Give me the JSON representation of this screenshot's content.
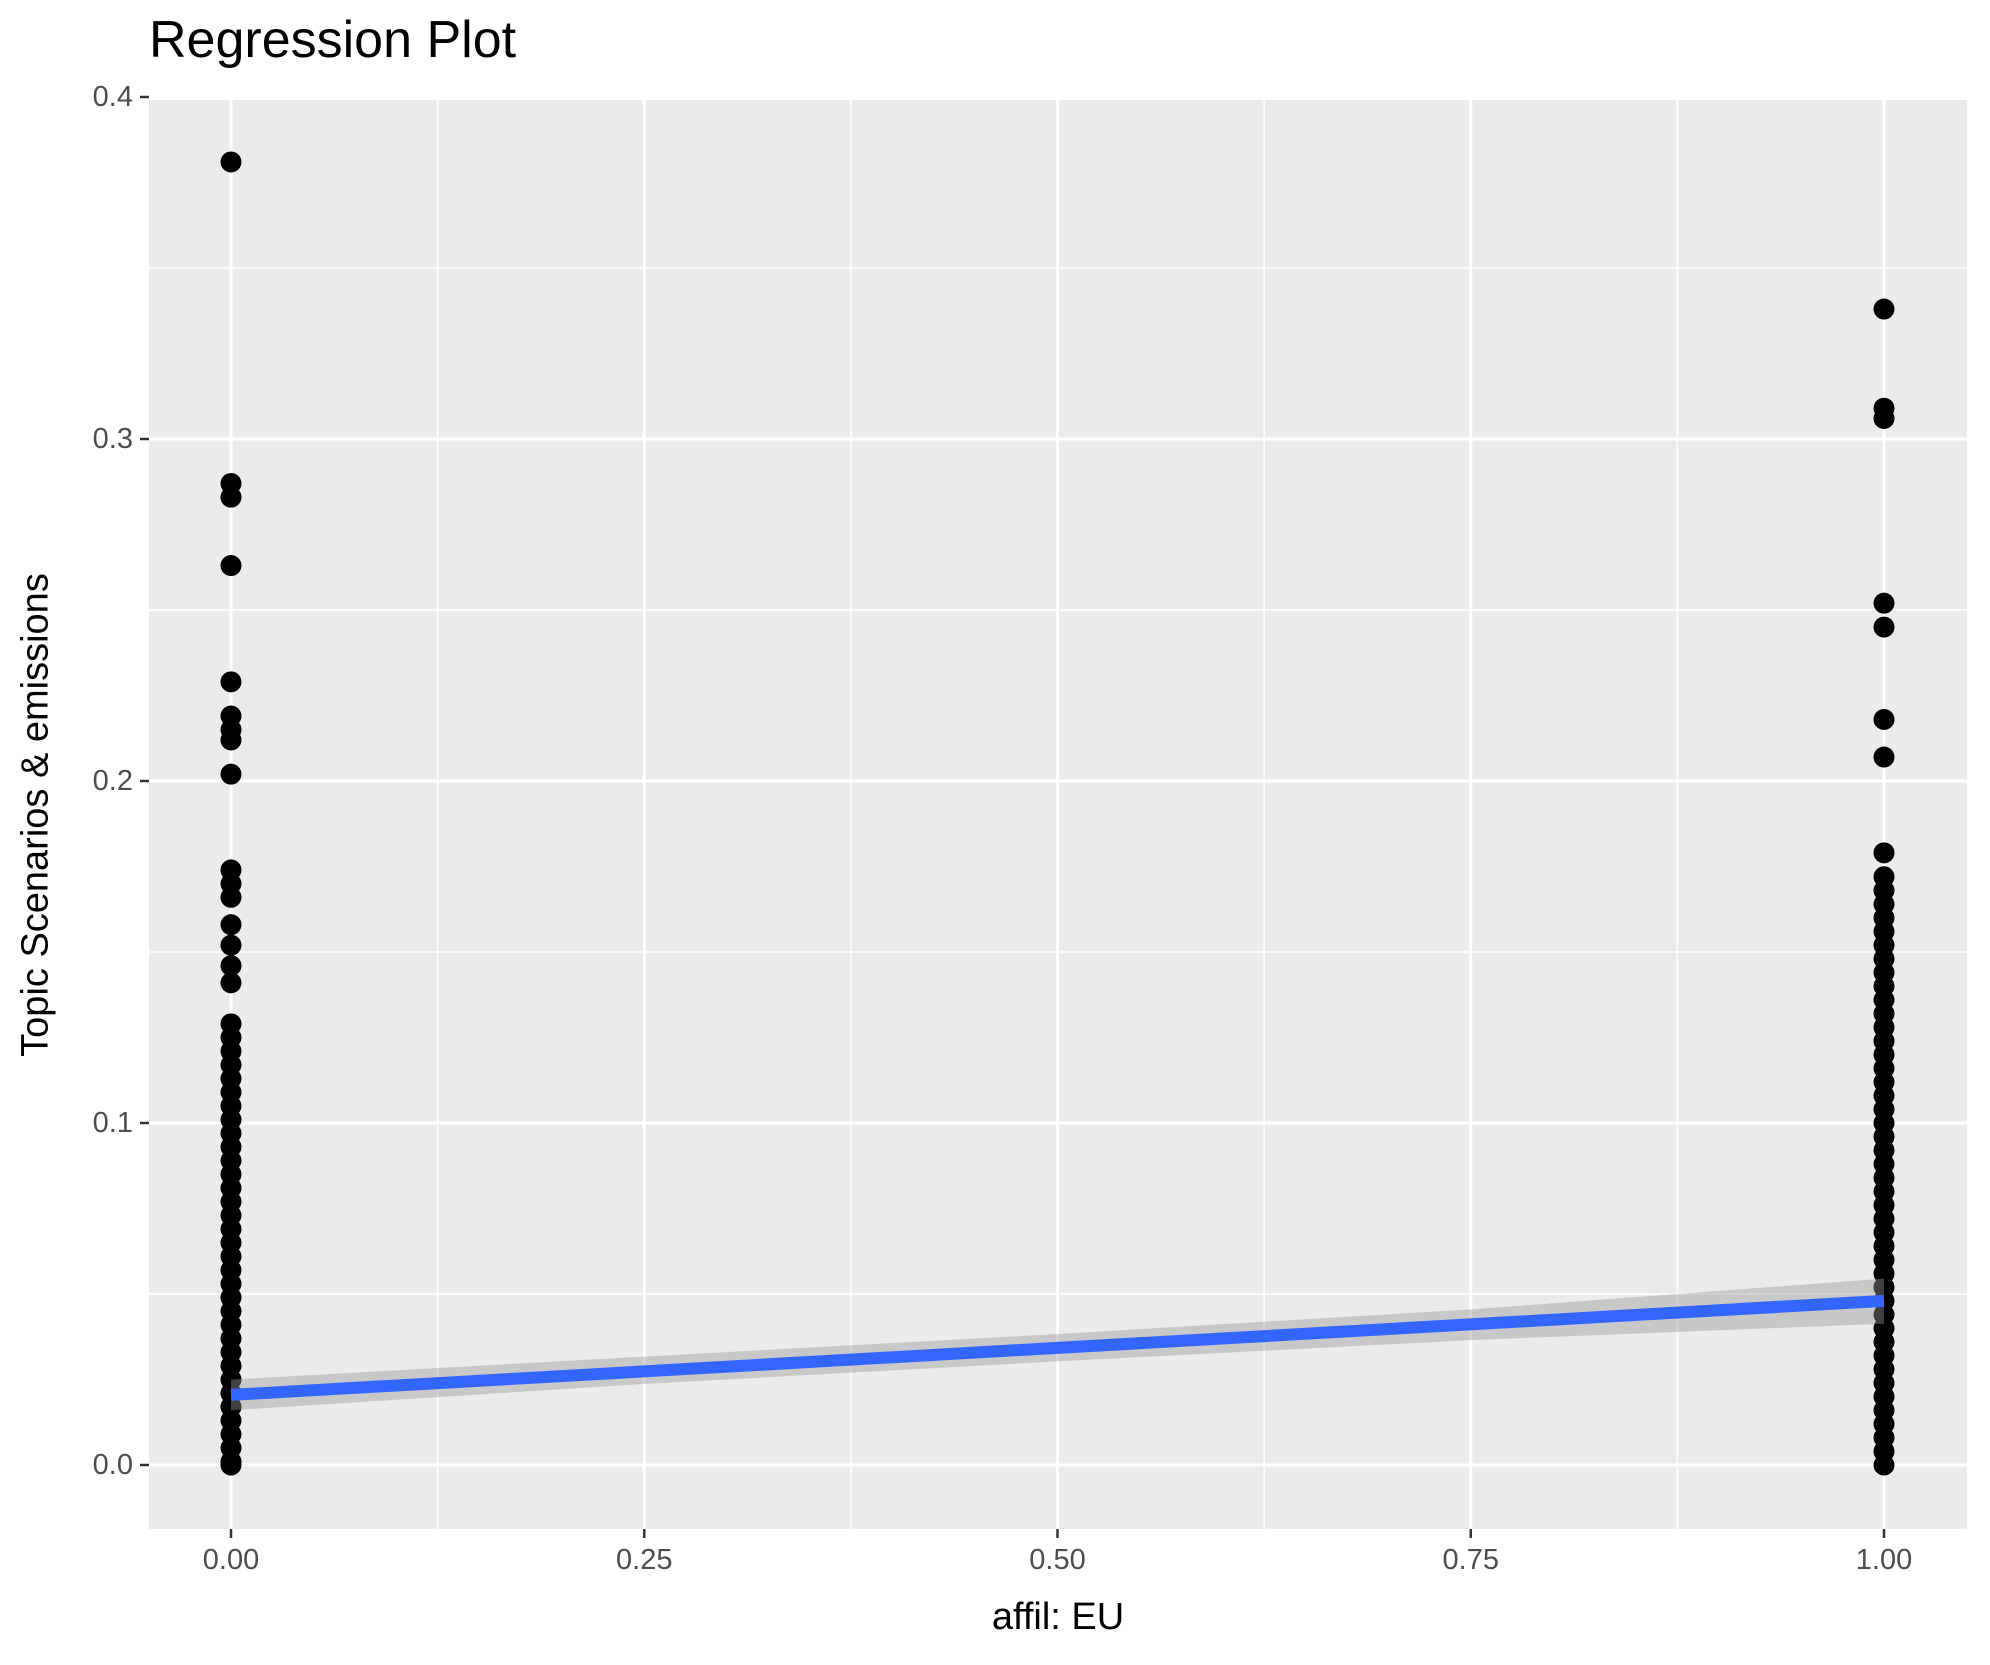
{
  "title": "Regression Plot",
  "axes": {
    "x": {
      "title": "affil: EU",
      "tick_labels": [
        "0.00",
        "0.25",
        "0.50",
        "0.75",
        "1.00"
      ],
      "tick_values": [
        0,
        0.25,
        0.5,
        0.75,
        1
      ],
      "minor_values": [
        0.125,
        0.375,
        0.625,
        0.875
      ],
      "range": [
        -0.05,
        1.05
      ]
    },
    "y": {
      "title": "Topic Scenarios & emissions",
      "tick_labels": [
        "0.0",
        "0.1",
        "0.2",
        "0.3",
        "0.4"
      ],
      "tick_values": [
        0,
        0.1,
        0.2,
        0.3,
        0.4
      ],
      "minor_values": [
        0.05,
        0.15,
        0.25,
        0.35
      ],
      "range": [
        -0.019,
        0.399
      ]
    }
  },
  "colors": {
    "panel_background": "#EBEBEB",
    "gridline": "#FFFFFF",
    "tick_mark": "#333333",
    "tick_label": "#4D4D4D",
    "point": "#000000",
    "regression_line": "#3366FF",
    "confidence_band": "rgba(153,153,153,0.42)"
  },
  "chart_data": {
    "type": "scatter",
    "title": "Regression Plot",
    "xlabel": "affil: EU",
    "ylabel": "Topic Scenarios & emissions",
    "xlim": [
      -0.05,
      1.05
    ],
    "ylim": [
      -0.019,
      0.399
    ],
    "grid": true,
    "legend_position": "none",
    "series": [
      {
        "name": "affil: EU = 0",
        "x": 0,
        "y": [
          0.381,
          0.287,
          0.283,
          0.263,
          0.229,
          0.219,
          0.215,
          0.212,
          0.202,
          0.174,
          0.17,
          0.166,
          0.158,
          0.152,
          0.146,
          0.141,
          0.129,
          0.125,
          0.121,
          0.117,
          0.113,
          0.109,
          0.105,
          0.101,
          0.097,
          0.093,
          0.089,
          0.085,
          0.081,
          0.077,
          0.073,
          0.069,
          0.065,
          0.061,
          0.057,
          0.053,
          0.049,
          0.045,
          0.041,
          0.037,
          0.033,
          0.029,
          0.025,
          0.021,
          0.017,
          0.013,
          0.009,
          0.005,
          0.001,
          0.0
        ]
      },
      {
        "name": "affil: EU = 1",
        "x": 1,
        "y": [
          0.338,
          0.309,
          0.306,
          0.252,
          0.245,
          0.218,
          0.207,
          0.179,
          0.172,
          0.168,
          0.164,
          0.16,
          0.156,
          0.152,
          0.148,
          0.144,
          0.14,
          0.136,
          0.132,
          0.128,
          0.124,
          0.12,
          0.116,
          0.112,
          0.108,
          0.104,
          0.1,
          0.096,
          0.092,
          0.088,
          0.084,
          0.08,
          0.076,
          0.072,
          0.068,
          0.064,
          0.06,
          0.056,
          0.052,
          0.048,
          0.044,
          0.04,
          0.036,
          0.032,
          0.028,
          0.024,
          0.02,
          0.016,
          0.012,
          0.008,
          0.004,
          0.0
        ]
      }
    ],
    "regression_line": {
      "x": [
        0,
        1
      ],
      "y": [
        0.0205,
        0.048
      ],
      "color": "#3366FF"
    },
    "confidence_band": {
      "x": [
        0,
        0.25,
        0.5,
        0.75,
        1
      ],
      "upper": [
        0.025,
        0.0317,
        0.0383,
        0.0455,
        0.0545
      ],
      "lower": [
        0.016,
        0.0237,
        0.0303,
        0.0365,
        0.0413
      ]
    }
  }
}
